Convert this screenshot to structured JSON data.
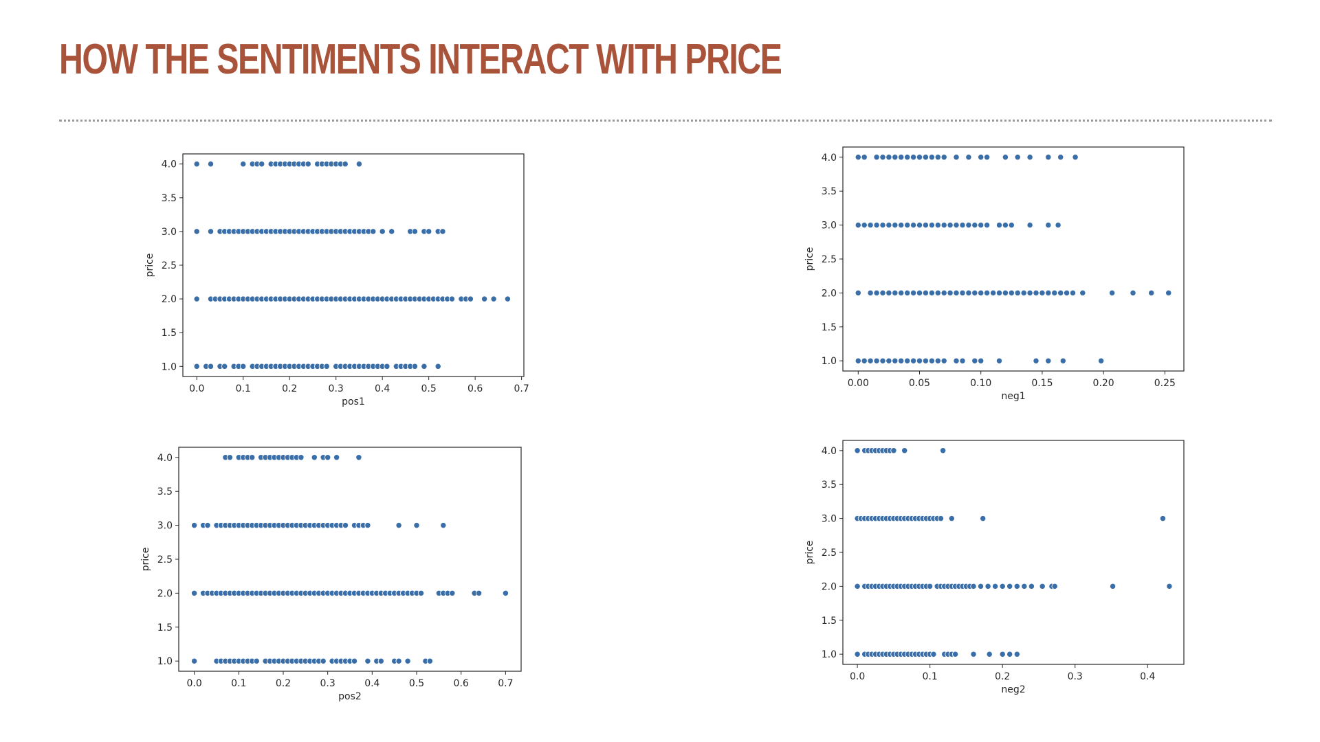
{
  "slide": {
    "title": "HOW THE SENTIMENTS INTERACT WITH PRICE",
    "title_color": "#a8533a",
    "point_color": "#3a6ea8"
  },
  "chart_data": [
    {
      "type": "scatter",
      "xlabel": "pos1",
      "ylabel": "price",
      "xlim": [
        -0.03,
        0.705
      ],
      "ylim": [
        0.85,
        4.15
      ],
      "xticks": [
        "0.0",
        "0.1",
        "0.2",
        "0.3",
        "0.4",
        "0.5",
        "0.6",
        "0.7"
      ],
      "yticks": [
        "1.0",
        "1.5",
        "2.0",
        "2.5",
        "3.0",
        "3.5",
        "4.0"
      ],
      "groups": [
        {
          "y": 4.0,
          "x": [
            0.0,
            0.03,
            0.1,
            0.12,
            0.13,
            0.14,
            0.16,
            0.17,
            0.18,
            0.19,
            0.2,
            0.21,
            0.22,
            0.23,
            0.24,
            0.26,
            0.27,
            0.28,
            0.29,
            0.3,
            0.31,
            0.32,
            0.35
          ]
        },
        {
          "y": 3.0,
          "x": [
            0.0,
            0.03,
            0.05,
            0.06,
            0.07,
            0.08,
            0.09,
            0.1,
            0.11,
            0.12,
            0.13,
            0.14,
            0.15,
            0.16,
            0.17,
            0.18,
            0.19,
            0.2,
            0.21,
            0.22,
            0.23,
            0.24,
            0.25,
            0.26,
            0.27,
            0.28,
            0.29,
            0.3,
            0.31,
            0.32,
            0.33,
            0.34,
            0.35,
            0.36,
            0.37,
            0.38,
            0.4,
            0.42,
            0.46,
            0.47,
            0.49,
            0.5,
            0.52,
            0.53
          ]
        },
        {
          "y": 2.0,
          "x": [
            0.0,
            0.03,
            0.04,
            0.05,
            0.06,
            0.07,
            0.08,
            0.09,
            0.1,
            0.11,
            0.12,
            0.13,
            0.14,
            0.15,
            0.16,
            0.17,
            0.18,
            0.19,
            0.2,
            0.21,
            0.22,
            0.23,
            0.24,
            0.25,
            0.26,
            0.27,
            0.28,
            0.29,
            0.3,
            0.31,
            0.32,
            0.33,
            0.34,
            0.35,
            0.36,
            0.37,
            0.38,
            0.39,
            0.4,
            0.41,
            0.42,
            0.43,
            0.44,
            0.45,
            0.46,
            0.47,
            0.48,
            0.49,
            0.5,
            0.51,
            0.52,
            0.53,
            0.54,
            0.55,
            0.57,
            0.58,
            0.59,
            0.62,
            0.64,
            0.67
          ]
        },
        {
          "y": 1.0,
          "x": [
            0.0,
            0.02,
            0.03,
            0.05,
            0.06,
            0.08,
            0.09,
            0.1,
            0.12,
            0.13,
            0.14,
            0.15,
            0.16,
            0.17,
            0.18,
            0.19,
            0.2,
            0.21,
            0.22,
            0.23,
            0.24,
            0.25,
            0.26,
            0.27,
            0.28,
            0.3,
            0.31,
            0.32,
            0.33,
            0.34,
            0.35,
            0.36,
            0.37,
            0.38,
            0.39,
            0.4,
            0.41,
            0.43,
            0.44,
            0.45,
            0.46,
            0.47,
            0.49,
            0.52
          ]
        }
      ]
    },
    {
      "type": "scatter",
      "xlabel": "neg1",
      "ylabel": "price",
      "xlim": [
        -0.0125,
        0.2655
      ],
      "ylim": [
        0.85,
        4.15
      ],
      "xticks": [
        "0.00",
        "0.05",
        "0.10",
        "0.15",
        "0.20",
        "0.25"
      ],
      "yticks": [
        "1.0",
        "1.5",
        "2.0",
        "2.5",
        "3.0",
        "3.5",
        "4.0"
      ],
      "groups": [
        {
          "y": 4.0,
          "x": [
            0.0,
            0.005,
            0.015,
            0.02,
            0.025,
            0.03,
            0.035,
            0.04,
            0.045,
            0.05,
            0.055,
            0.06,
            0.065,
            0.07,
            0.08,
            0.09,
            0.1,
            0.105,
            0.12,
            0.13,
            0.14,
            0.155,
            0.165,
            0.177
          ]
        },
        {
          "y": 3.0,
          "x": [
            0.0,
            0.005,
            0.01,
            0.015,
            0.02,
            0.025,
            0.03,
            0.035,
            0.04,
            0.045,
            0.05,
            0.055,
            0.06,
            0.065,
            0.07,
            0.075,
            0.08,
            0.085,
            0.09,
            0.095,
            0.1,
            0.105,
            0.115,
            0.12,
            0.125,
            0.14,
            0.155,
            0.163
          ]
        },
        {
          "y": 2.0,
          "x": [
            0.0,
            0.01,
            0.015,
            0.02,
            0.025,
            0.03,
            0.035,
            0.04,
            0.045,
            0.05,
            0.055,
            0.06,
            0.065,
            0.07,
            0.075,
            0.08,
            0.085,
            0.09,
            0.095,
            0.1,
            0.105,
            0.11,
            0.115,
            0.12,
            0.125,
            0.13,
            0.135,
            0.14,
            0.145,
            0.15,
            0.155,
            0.16,
            0.165,
            0.17,
            0.175,
            0.183,
            0.207,
            0.224,
            0.239,
            0.253
          ]
        },
        {
          "y": 1.0,
          "x": [
            0.0,
            0.005,
            0.01,
            0.015,
            0.02,
            0.025,
            0.03,
            0.035,
            0.04,
            0.045,
            0.05,
            0.055,
            0.06,
            0.065,
            0.07,
            0.08,
            0.085,
            0.095,
            0.1,
            0.115,
            0.145,
            0.155,
            0.167,
            0.198
          ]
        }
      ]
    },
    {
      "type": "scatter",
      "xlabel": "pos2",
      "ylabel": "price",
      "xlim": [
        -0.035,
        0.735
      ],
      "ylim": [
        0.85,
        4.15
      ],
      "xticks": [
        "0.0",
        "0.1",
        "0.2",
        "0.3",
        "0.4",
        "0.5",
        "0.6",
        "0.7"
      ],
      "yticks": [
        "1.0",
        "1.5",
        "2.0",
        "2.5",
        "3.0",
        "3.5",
        "4.0"
      ],
      "groups": [
        {
          "y": 4.0,
          "x": [
            0.07,
            0.08,
            0.1,
            0.11,
            0.12,
            0.13,
            0.15,
            0.16,
            0.17,
            0.18,
            0.19,
            0.2,
            0.21,
            0.22,
            0.23,
            0.24,
            0.27,
            0.29,
            0.3,
            0.32,
            0.37
          ]
        },
        {
          "y": 3.0,
          "x": [
            0.0,
            0.02,
            0.03,
            0.05,
            0.06,
            0.07,
            0.08,
            0.09,
            0.1,
            0.11,
            0.12,
            0.13,
            0.14,
            0.15,
            0.16,
            0.17,
            0.18,
            0.19,
            0.2,
            0.21,
            0.22,
            0.23,
            0.24,
            0.25,
            0.26,
            0.27,
            0.28,
            0.29,
            0.3,
            0.31,
            0.32,
            0.33,
            0.34,
            0.36,
            0.37,
            0.38,
            0.39,
            0.46,
            0.5,
            0.56
          ]
        },
        {
          "y": 2.0,
          "x": [
            0.0,
            0.02,
            0.03,
            0.04,
            0.05,
            0.06,
            0.07,
            0.08,
            0.09,
            0.1,
            0.11,
            0.12,
            0.13,
            0.14,
            0.15,
            0.16,
            0.17,
            0.18,
            0.19,
            0.2,
            0.21,
            0.22,
            0.23,
            0.24,
            0.25,
            0.26,
            0.27,
            0.28,
            0.29,
            0.3,
            0.31,
            0.32,
            0.33,
            0.34,
            0.35,
            0.36,
            0.37,
            0.38,
            0.39,
            0.4,
            0.41,
            0.42,
            0.43,
            0.44,
            0.45,
            0.46,
            0.47,
            0.48,
            0.49,
            0.5,
            0.51,
            0.55,
            0.56,
            0.57,
            0.58,
            0.63,
            0.64,
            0.7
          ]
        },
        {
          "y": 1.0,
          "x": [
            0.0,
            0.05,
            0.06,
            0.07,
            0.08,
            0.09,
            0.1,
            0.11,
            0.12,
            0.13,
            0.14,
            0.16,
            0.17,
            0.18,
            0.19,
            0.2,
            0.21,
            0.22,
            0.23,
            0.24,
            0.25,
            0.26,
            0.27,
            0.28,
            0.29,
            0.31,
            0.32,
            0.33,
            0.34,
            0.35,
            0.36,
            0.39,
            0.41,
            0.42,
            0.45,
            0.46,
            0.48,
            0.52,
            0.53
          ]
        }
      ]
    },
    {
      "type": "scatter",
      "xlabel": "neg2",
      "ylabel": "price",
      "xlim": [
        -0.02,
        0.45
      ],
      "ylim": [
        0.85,
        4.15
      ],
      "xticks": [
        "0.0",
        "0.1",
        "0.2",
        "0.3",
        "0.4"
      ],
      "yticks": [
        "1.0",
        "1.5",
        "2.0",
        "2.5",
        "3.0",
        "3.5",
        "4.0"
      ],
      "groups": [
        {
          "y": 4.0,
          "x": [
            0.0,
            0.01,
            0.015,
            0.02,
            0.025,
            0.03,
            0.035,
            0.04,
            0.045,
            0.05,
            0.065,
            0.118
          ]
        },
        {
          "y": 3.0,
          "x": [
            0.0,
            0.005,
            0.01,
            0.015,
            0.02,
            0.025,
            0.03,
            0.035,
            0.04,
            0.045,
            0.05,
            0.055,
            0.06,
            0.065,
            0.07,
            0.075,
            0.08,
            0.085,
            0.09,
            0.095,
            0.1,
            0.105,
            0.11,
            0.115,
            0.13,
            0.173,
            0.421
          ]
        },
        {
          "y": 2.0,
          "x": [
            0.0,
            0.01,
            0.015,
            0.02,
            0.025,
            0.03,
            0.035,
            0.04,
            0.045,
            0.05,
            0.055,
            0.06,
            0.065,
            0.07,
            0.075,
            0.08,
            0.085,
            0.09,
            0.095,
            0.1,
            0.11,
            0.115,
            0.12,
            0.125,
            0.13,
            0.135,
            0.14,
            0.145,
            0.15,
            0.155,
            0.16,
            0.17,
            0.18,
            0.19,
            0.2,
            0.21,
            0.22,
            0.23,
            0.24,
            0.255,
            0.268,
            0.272,
            0.352,
            0.43
          ]
        },
        {
          "y": 1.0,
          "x": [
            0.0,
            0.01,
            0.015,
            0.02,
            0.025,
            0.03,
            0.035,
            0.04,
            0.045,
            0.05,
            0.055,
            0.06,
            0.065,
            0.07,
            0.075,
            0.08,
            0.085,
            0.09,
            0.095,
            0.1,
            0.105,
            0.12,
            0.125,
            0.13,
            0.135,
            0.16,
            0.182,
            0.2,
            0.21,
            0.22
          ]
        }
      ]
    }
  ]
}
